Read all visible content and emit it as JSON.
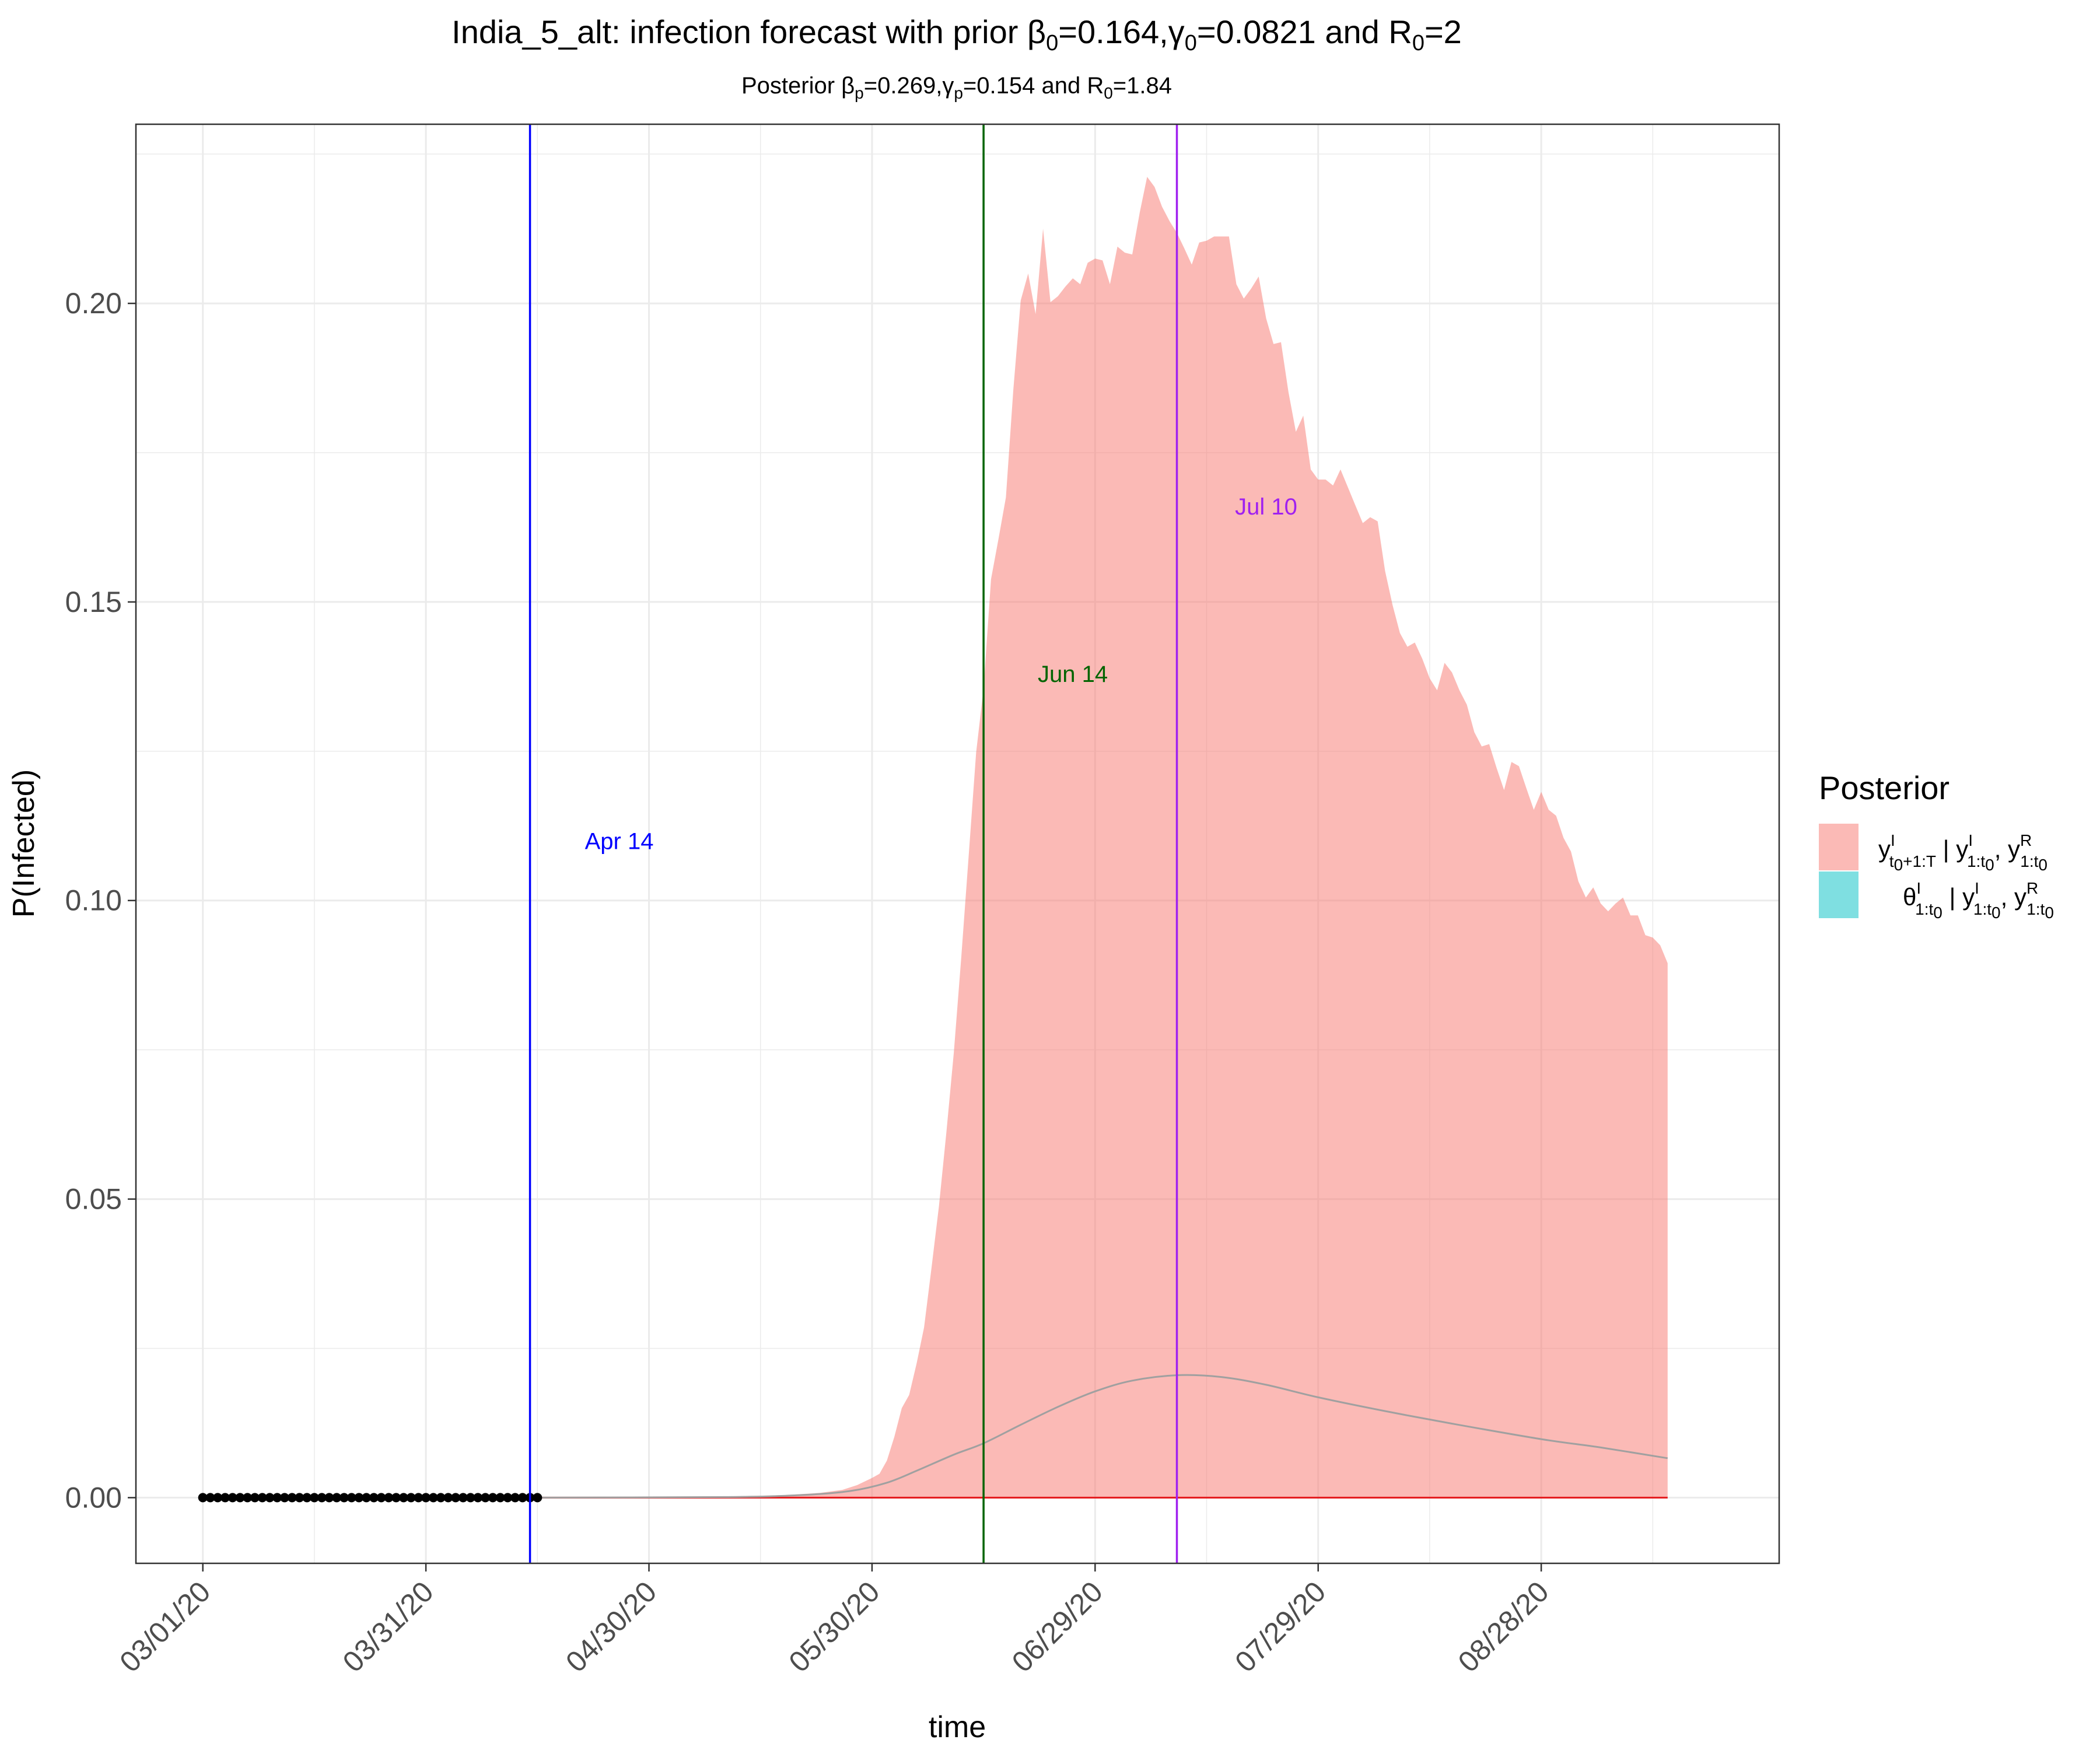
{
  "chart_data": {
    "type": "area",
    "title": "India_5_alt: infection forecast with prior β0=0.164,γ0=0.0821 and R0=2",
    "title_parts": {
      "prefix": "India_5_alt: infection forecast with prior β",
      "beta_sub": "0",
      "beta_val": "=0.164,γ",
      "gamma_sub": "0",
      "gamma_val": "=0.0821 and R",
      "r_sub": "0",
      "r_val": "=2"
    },
    "subtitle": "Posterior βp=0.269,γp=0.154 and R0=1.84",
    "subtitle_parts": {
      "prefix": "Posterior β",
      "beta_sub": "p",
      "beta_val": "=0.269,γ",
      "gamma_sub": "p",
      "gamma_val": "=0.154 and R",
      "r_sub": "0",
      "r_val": "=1.84"
    },
    "xlabel": "time",
    "ylabel": "P(Infected)",
    "x_ticks": [
      "2020-03-01",
      "2020-03-31",
      "2020-04-30",
      "2020-05-30",
      "2020-06-29",
      "2020-07-29",
      "2020-08-28"
    ],
    "x_tick_labels": [
      "03/01/20",
      "03/31/20",
      "04/30/20",
      "05/30/20",
      "06/29/20",
      "07/29/20",
      "08/28/20"
    ],
    "xlim": [
      "2020-02-21",
      "2020-09-29"
    ],
    "y_ticks": [
      0.0,
      0.05,
      0.1,
      0.15,
      0.2
    ],
    "y_tick_labels": [
      "0.00",
      "0.05",
      "0.10",
      "0.15",
      "0.20"
    ],
    "ylim": [
      -0.011,
      0.23
    ],
    "grid": true,
    "legend": {
      "title": "Posterior",
      "position": "right",
      "entries": [
        {
          "label": "y^I_{t0+1:T} | y^I_{1:t0}, y^R_{1:t0}",
          "color": "#F8766D"
        },
        {
          "label": "θ^I_{1:t0} | y^I_{1:t0}, y^R_{1:t0}",
          "color": "#00BFC4"
        }
      ]
    },
    "band_upper": {
      "name": "y^I_{t0+1:T} | y^I_{1:t0}, y^R_{1:t0}",
      "color": "#F8766D",
      "points": [
        [
          "2020-04-14",
          0.0
        ],
        [
          "2020-04-30",
          0.0001
        ],
        [
          "2020-05-10",
          0.0002
        ],
        [
          "2020-05-18",
          0.0004
        ],
        [
          "2020-05-23",
          0.0008
        ],
        [
          "2020-05-26",
          0.0013
        ],
        [
          "2020-05-28",
          0.0021
        ],
        [
          "2020-05-30",
          0.0033
        ],
        [
          "2020-05-31",
          0.004
        ],
        [
          "2020-06-01",
          0.0062
        ],
        [
          "2020-06-02",
          0.0102
        ],
        [
          "2020-06-03",
          0.015
        ],
        [
          "2020-06-04",
          0.0172
        ],
        [
          "2020-06-05",
          0.0225
        ],
        [
          "2020-06-06",
          0.0285
        ],
        [
          "2020-06-07",
          0.0385
        ],
        [
          "2020-06-08",
          0.0488
        ],
        [
          "2020-06-09",
          0.0612
        ],
        [
          "2020-06-10",
          0.0745
        ],
        [
          "2020-06-11",
          0.0905
        ],
        [
          "2020-06-12",
          0.1075
        ],
        [
          "2020-06-13",
          0.1248
        ],
        [
          "2020-06-14",
          0.1355
        ],
        [
          "2020-06-15",
          0.1538
        ],
        [
          "2020-06-16",
          0.1605
        ],
        [
          "2020-06-17",
          0.1675
        ],
        [
          "2020-06-18",
          0.1855
        ],
        [
          "2020-06-19",
          0.2005
        ],
        [
          "2020-06-20",
          0.205
        ],
        [
          "2020-06-21",
          0.1982
        ],
        [
          "2020-06-22",
          0.2125
        ],
        [
          "2020-06-23",
          0.2002
        ],
        [
          "2020-06-24",
          0.2012
        ],
        [
          "2020-06-25",
          0.2028
        ],
        [
          "2020-06-26",
          0.2042
        ],
        [
          "2020-06-27",
          0.2032
        ],
        [
          "2020-06-28",
          0.2068
        ],
        [
          "2020-06-29",
          0.2075
        ],
        [
          "2020-06-30",
          0.2072
        ],
        [
          "2020-07-01",
          0.2032
        ],
        [
          "2020-07-02",
          0.2095
        ],
        [
          "2020-07-03",
          0.2085
        ],
        [
          "2020-07-04",
          0.2082
        ],
        [
          "2020-07-05",
          0.2152
        ],
        [
          "2020-07-06",
          0.2212
        ],
        [
          "2020-07-07",
          0.2195
        ],
        [
          "2020-07-08",
          0.2162
        ],
        [
          "2020-07-09",
          0.2138
        ],
        [
          "2020-07-10",
          0.2118
        ],
        [
          "2020-07-11",
          0.2092
        ],
        [
          "2020-07-12",
          0.2065
        ],
        [
          "2020-07-13",
          0.2102
        ],
        [
          "2020-07-14",
          0.2105
        ],
        [
          "2020-07-15",
          0.2112
        ],
        [
          "2020-07-16",
          0.2112
        ],
        [
          "2020-07-17",
          0.2112
        ],
        [
          "2020-07-18",
          0.2032
        ],
        [
          "2020-07-19",
          0.2008
        ],
        [
          "2020-07-20",
          0.2025
        ],
        [
          "2020-07-21",
          0.2045
        ],
        [
          "2020-07-22",
          0.1975
        ],
        [
          "2020-07-23",
          0.1932
        ],
        [
          "2020-07-24",
          0.1935
        ],
        [
          "2020-07-25",
          0.1852
        ],
        [
          "2020-07-26",
          0.1785
        ],
        [
          "2020-07-27",
          0.1812
        ],
        [
          "2020-07-28",
          0.1722
        ],
        [
          "2020-07-29",
          0.1705
        ],
        [
          "2020-07-30",
          0.1705
        ],
        [
          "2020-07-31",
          0.1695
        ],
        [
          "2020-08-01",
          0.1722
        ],
        [
          "2020-08-02",
          0.1692
        ],
        [
          "2020-08-03",
          0.1662
        ],
        [
          "2020-08-04",
          0.1632
        ],
        [
          "2020-08-05",
          0.1642
        ],
        [
          "2020-08-06",
          0.1635
        ],
        [
          "2020-08-07",
          0.1552
        ],
        [
          "2020-08-08",
          0.1495
        ],
        [
          "2020-08-09",
          0.1448
        ],
        [
          "2020-08-10",
          0.1425
        ],
        [
          "2020-08-11",
          0.1432
        ],
        [
          "2020-08-12",
          0.1405
        ],
        [
          "2020-08-13",
          0.1372
        ],
        [
          "2020-08-14",
          0.1352
        ],
        [
          "2020-08-15",
          0.1398
        ],
        [
          "2020-08-16",
          0.1382
        ],
        [
          "2020-08-17",
          0.1352
        ],
        [
          "2020-08-18",
          0.1328
        ],
        [
          "2020-08-19",
          0.1282
        ],
        [
          "2020-08-20",
          0.1258
        ],
        [
          "2020-08-21",
          0.1262
        ],
        [
          "2020-08-22",
          0.1222
        ],
        [
          "2020-08-23",
          0.1185
        ],
        [
          "2020-08-24",
          0.1232
        ],
        [
          "2020-08-25",
          0.1225
        ],
        [
          "2020-08-26",
          0.1188
        ],
        [
          "2020-08-27",
          0.1152
        ],
        [
          "2020-08-28",
          0.1182
        ],
        [
          "2020-08-29",
          0.1152
        ],
        [
          "2020-08-30",
          0.1142
        ],
        [
          "2020-08-31",
          0.1105
        ],
        [
          "2020-09-01",
          0.1082
        ],
        [
          "2020-09-02",
          0.1032
        ],
        [
          "2020-09-03",
          0.1005
        ],
        [
          "2020-09-04",
          0.1022
        ],
        [
          "2020-09-05",
          0.0995
        ],
        [
          "2020-09-06",
          0.0982
        ],
        [
          "2020-09-07",
          0.0995
        ],
        [
          "2020-09-08",
          0.1005
        ],
        [
          "2020-09-09",
          0.0975
        ],
        [
          "2020-09-10",
          0.0975
        ],
        [
          "2020-09-11",
          0.0942
        ],
        [
          "2020-09-12",
          0.0938
        ],
        [
          "2020-09-13",
          0.0925
        ],
        [
          "2020-09-14",
          0.0895
        ]
      ]
    },
    "mean_line": {
      "color": "#A0A0A0",
      "points": [
        [
          "2020-04-14",
          0.0
        ],
        [
          "2020-05-10",
          0.0001
        ],
        [
          "2020-05-20",
          0.0004
        ],
        [
          "2020-05-27",
          0.0011
        ],
        [
          "2020-06-01",
          0.0025
        ],
        [
          "2020-06-05",
          0.0045
        ],
        [
          "2020-06-10",
          0.0072
        ],
        [
          "2020-06-14",
          0.0091
        ],
        [
          "2020-06-19",
          0.0122
        ],
        [
          "2020-06-24",
          0.0152
        ],
        [
          "2020-06-29",
          0.0178
        ],
        [
          "2020-07-04",
          0.0196
        ],
        [
          "2020-07-10",
          0.0205
        ],
        [
          "2020-07-16",
          0.0202
        ],
        [
          "2020-07-22",
          0.0189
        ],
        [
          "2020-07-29",
          0.0168
        ],
        [
          "2020-08-07",
          0.0145
        ],
        [
          "2020-08-16",
          0.0124
        ],
        [
          "2020-08-28",
          0.0098
        ],
        [
          "2020-09-05",
          0.0084
        ],
        [
          "2020-09-14",
          0.0066
        ]
      ]
    },
    "zero_line": {
      "color": "#E41A1C",
      "from": "2020-04-14",
      "to": "2020-09-14",
      "value": 0.0
    },
    "observed_points": {
      "color": "#000000",
      "from": "2020-03-01",
      "to": "2020-04-15",
      "value": 0.0
    },
    "vlines": [
      {
        "date": "2020-04-14",
        "color": "#0000FF",
        "label": "Apr 14",
        "label_date": "2020-04-26",
        "label_y": 0.11
      },
      {
        "date": "2020-06-14",
        "color": "#006400",
        "label": "Jun 14",
        "label_date": "2020-06-26",
        "label_y": 0.138
      },
      {
        "date": "2020-07-10",
        "color": "#A020F0",
        "label": "Jul 10",
        "label_date": "2020-07-22",
        "label_y": 0.166
      }
    ]
  }
}
